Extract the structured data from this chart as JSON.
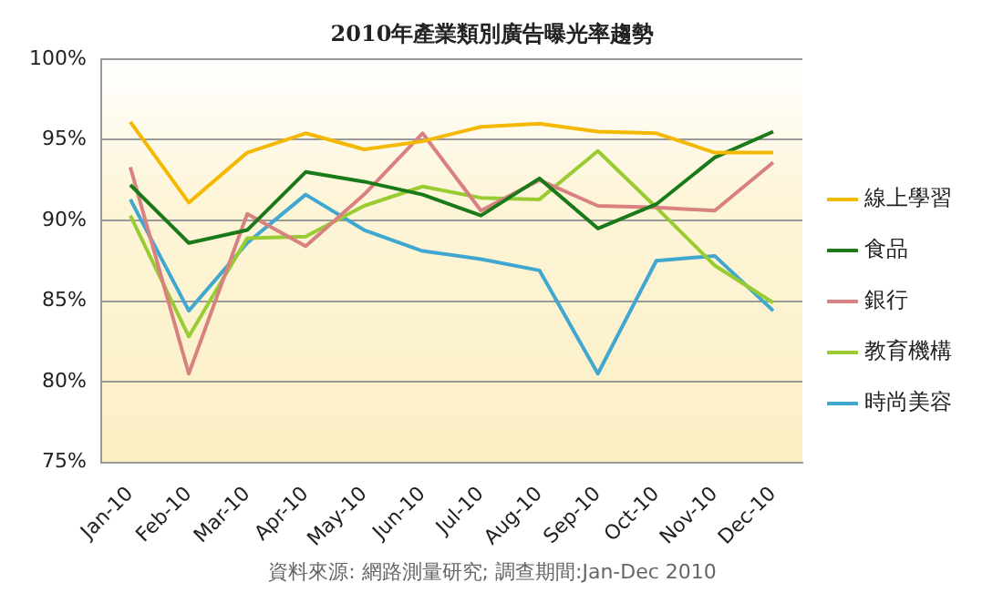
{
  "chart_data": {
    "type": "line",
    "title": "2010年產業類別廣告曝光率趨勢",
    "categories": [
      "Jan-10",
      "Feb-10",
      "Mar-10",
      "Apr-10",
      "May-10",
      "Jun-10",
      "Jul-10",
      "Aug-10",
      "Sep-10",
      "Oct-10",
      "Nov-10",
      "Dec-10"
    ],
    "series": [
      {
        "name": "線上學習",
        "color": "#f5b800",
        "values": [
          96.1,
          91.1,
          94.2,
          95.4,
          94.4,
          94.9,
          95.8,
          96.0,
          95.5,
          95.4,
          94.2,
          94.2
        ]
      },
      {
        "name": "食品",
        "color": "#1a7a1a",
        "values": [
          92.2,
          88.6,
          89.4,
          93.0,
          92.4,
          91.6,
          90.3,
          92.6,
          89.5,
          91.0,
          93.9,
          95.5
        ]
      },
      {
        "name": "銀行",
        "color": "#d98080",
        "values": [
          93.3,
          80.5,
          90.4,
          88.4,
          91.6,
          95.4,
          90.6,
          92.5,
          90.9,
          90.8,
          90.6,
          93.6
        ]
      },
      {
        "name": "教育機構",
        "color": "#99cc33",
        "values": [
          90.3,
          82.8,
          88.9,
          89.0,
          90.9,
          92.1,
          91.4,
          91.3,
          94.3,
          90.8,
          87.2,
          84.9
        ]
      },
      {
        "name": "時尚美容",
        "color": "#40a8d0",
        "values": [
          91.3,
          84.4,
          88.6,
          91.6,
          89.4,
          88.1,
          87.6,
          86.9,
          80.5,
          87.5,
          87.8,
          84.4
        ]
      }
    ],
    "ylim": [
      75,
      100
    ],
    "yticks": [
      {
        "value": 75,
        "label": "75%"
      },
      {
        "value": 80,
        "label": "80%"
      },
      {
        "value": 85,
        "label": "85%"
      },
      {
        "value": 90,
        "label": "90%"
      },
      {
        "value": 95,
        "label": "95%"
      },
      {
        "value": 100,
        "label": "100%"
      }
    ],
    "grid": "y",
    "legend": "right",
    "marker": "none",
    "line_style": "solid",
    "annotations": [
      "資料來源: 網路測量研究; 調查期間:Jan-Dec 2010"
    ]
  }
}
